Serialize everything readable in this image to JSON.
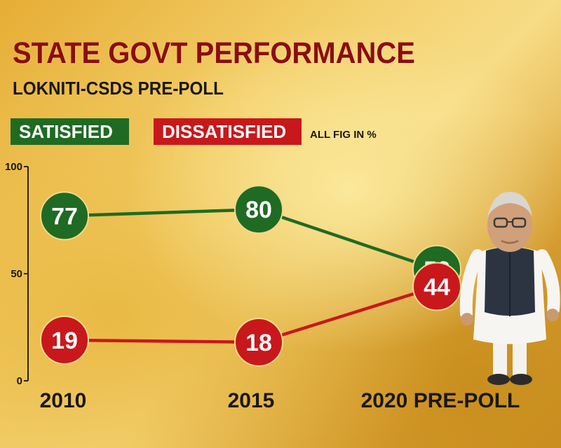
{
  "header": {
    "title": "STATE GOVT PERFORMANCE",
    "subtitle": "LOKNITI-CSDS PRE-POLL"
  },
  "legend": {
    "satisfied_label": "SATISFIED",
    "dissatisfied_label": "DISSATISFIED",
    "unit_note": "ALL FIG IN %"
  },
  "colors": {
    "satisfied": "#1f6b23",
    "dissatisfied": "#c8181c",
    "title": "#8b0d0f"
  },
  "chart_data": {
    "type": "line",
    "title": "STATE GOVT PERFORMANCE",
    "subtitle": "LOKNITI-CSDS PRE-POLL",
    "categories": [
      "2010",
      "2015",
      "2020 PRE-POLL"
    ],
    "series": [
      {
        "name": "SATISFIED",
        "values": [
          77,
          80,
          52
        ],
        "color": "#1f6b23"
      },
      {
        "name": "DISSATISFIED",
        "values": [
          19,
          18,
          44
        ],
        "color": "#c8181c"
      }
    ],
    "yticks": [
      "0",
      "50",
      "100"
    ],
    "ylim": [
      0,
      100
    ],
    "grid": false,
    "legend_position": "top-left",
    "unit": "ALL FIG IN %"
  }
}
